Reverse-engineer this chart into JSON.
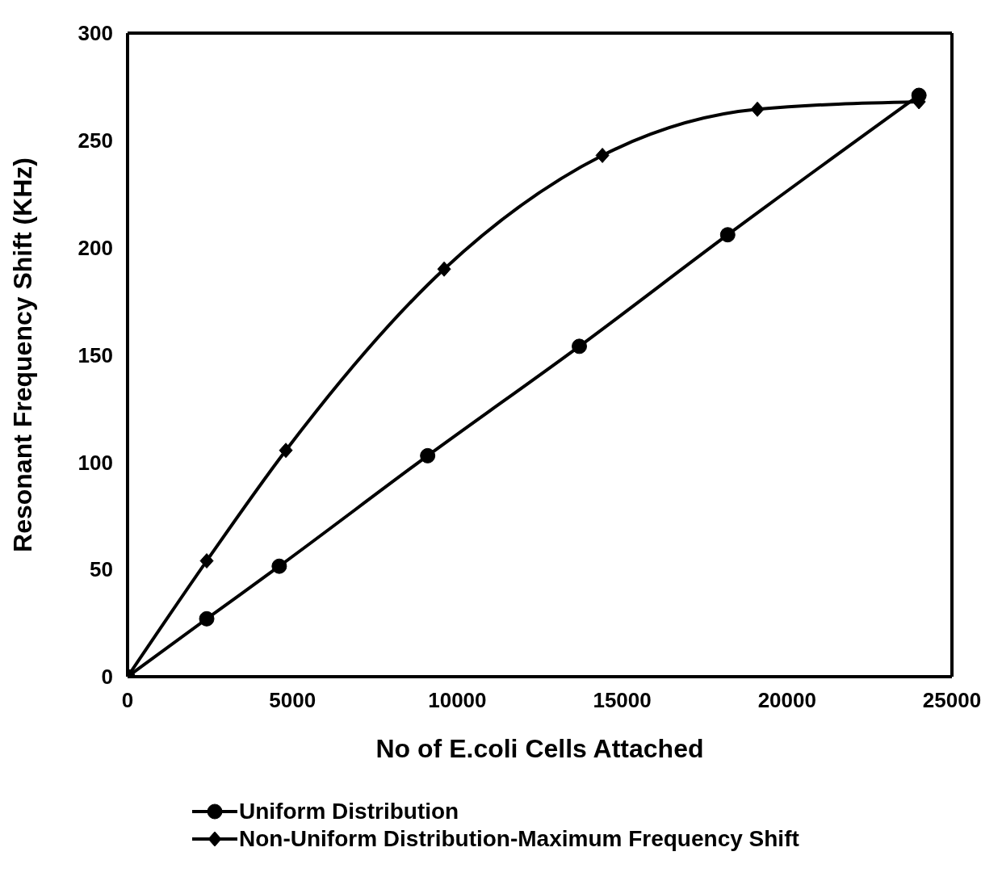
{
  "chart_data": {
    "type": "line",
    "xlabel": "No of E.coli Cells Attached",
    "ylabel": "Resonant Frequency Shift (KHz)",
    "xlim": [
      0,
      25000
    ],
    "xticks": [
      0,
      5000,
      10000,
      15000,
      20000,
      25000
    ],
    "ylim": [
      0,
      300
    ],
    "yticks": [
      0,
      50,
      100,
      150,
      200,
      250,
      300
    ],
    "legend": "bottom",
    "series": [
      {
        "name": "Uniform Distribution",
        "color": "#000000",
        "marker": "circle",
        "line_style": "solid",
        "x": [
          0,
          2400,
          4600,
          9100,
          13700,
          18200,
          24000
        ],
        "values": [
          0,
          27,
          51.5,
          103,
          154,
          206,
          271
        ]
      },
      {
        "name": "Non-Uniform Distribution-Maximum Frequency Shift",
        "color": "#000000",
        "marker": "diamond",
        "line_style": "solid",
        "x": [
          0,
          2400,
          4800,
          9600,
          14400,
          19100,
          24000
        ],
        "values": [
          0,
          54,
          105.5,
          190,
          243,
          264.5,
          268
        ]
      }
    ]
  }
}
